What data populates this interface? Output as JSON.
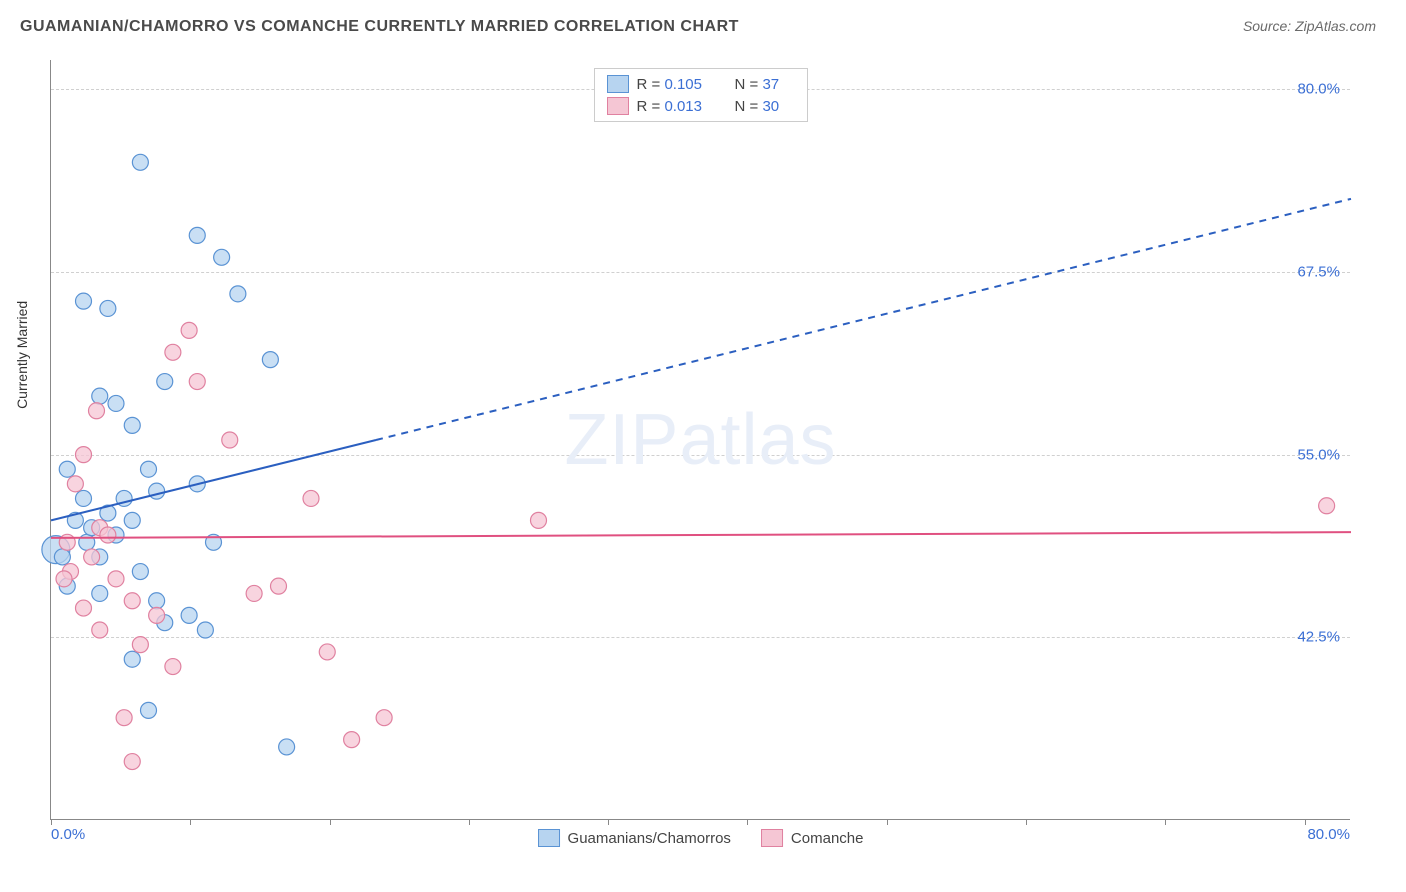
{
  "title": "GUAMANIAN/CHAMORRO VS COMANCHE CURRENTLY MARRIED CORRELATION CHART",
  "source": "Source: ZipAtlas.com",
  "ylabel": "Currently Married",
  "watermark": "ZIPatlas",
  "chart": {
    "type": "scatter",
    "xlim": [
      0,
      80
    ],
    "ylim": [
      30,
      82
    ],
    "yticks": [
      42.5,
      55.0,
      67.5,
      80.0
    ],
    "ytick_labels": [
      "42.5%",
      "55.0%",
      "67.5%",
      "80.0%"
    ],
    "xticks_minor": [
      0,
      8.57,
      17.14,
      25.71,
      34.29,
      42.86,
      51.43,
      60,
      68.57,
      77.14
    ],
    "xtick_left": "0.0%",
    "xtick_right": "80.0%",
    "grid_color": "#d0d0d0",
    "axis_color": "#888888",
    "background_color": "#ffffff",
    "series": [
      {
        "name": "Guamanians/Chamorros",
        "color_fill": "#b7d4f0",
        "color_stroke": "#5a93d4",
        "marker_radius": 8,
        "marker_opacity": 0.75,
        "trend": {
          "start": [
            0,
            50.5
          ],
          "end": [
            80,
            72.5
          ],
          "solid_until_x": 20,
          "color": "#2b5fc0",
          "width": 2
        },
        "R": "0.105",
        "N": "37",
        "points": [
          [
            1.0,
            54.0
          ],
          [
            1.5,
            50.5
          ],
          [
            2.0,
            52.0
          ],
          [
            2.2,
            49.0
          ],
          [
            0.3,
            48.5,
            14
          ],
          [
            1.0,
            46.0
          ],
          [
            2.5,
            50.0
          ],
          [
            3.0,
            48.0
          ],
          [
            3.5,
            51.0
          ],
          [
            4.0,
            49.5
          ],
          [
            4.5,
            52.0
          ],
          [
            5.0,
            50.5
          ],
          [
            5.5,
            47.0
          ],
          [
            6.0,
            54.0
          ],
          [
            6.5,
            52.5
          ],
          [
            3.0,
            59.0
          ],
          [
            4.0,
            58.5
          ],
          [
            5.0,
            57.0
          ],
          [
            7.0,
            60.0
          ],
          [
            3.5,
            65.0
          ],
          [
            2.0,
            65.5
          ],
          [
            5.5,
            75.0
          ],
          [
            9.0,
            70.0
          ],
          [
            10.5,
            68.5
          ],
          [
            11.5,
            66.0
          ],
          [
            13.5,
            61.5
          ],
          [
            9.0,
            53.0
          ],
          [
            10.0,
            49.0
          ],
          [
            6.5,
            45.0
          ],
          [
            7.0,
            43.5
          ],
          [
            5.0,
            41.0
          ],
          [
            6.0,
            37.5
          ],
          [
            8.5,
            44.0
          ],
          [
            9.5,
            43.0
          ],
          [
            14.5,
            35.0
          ],
          [
            3.0,
            45.5
          ],
          [
            0.7,
            48.0
          ]
        ]
      },
      {
        "name": "Comanche",
        "color_fill": "#f5c6d4",
        "color_stroke": "#e081a0",
        "marker_radius": 8,
        "marker_opacity": 0.75,
        "trend": {
          "start": [
            0,
            49.3
          ],
          "end": [
            80,
            49.7
          ],
          "solid_until_x": 80,
          "color": "#e05080",
          "width": 2
        },
        "R": "0.013",
        "N": "30",
        "points": [
          [
            1.5,
            53.0
          ],
          [
            2.0,
            55.0
          ],
          [
            3.0,
            50.0
          ],
          [
            1.0,
            49.0
          ],
          [
            2.5,
            48.0
          ],
          [
            3.5,
            49.5
          ],
          [
            4.0,
            46.5
          ],
          [
            5.0,
            45.0
          ],
          [
            2.0,
            44.5
          ],
          [
            3.0,
            43.0
          ],
          [
            5.5,
            42.0
          ],
          [
            6.5,
            44.0
          ],
          [
            7.5,
            40.5
          ],
          [
            4.5,
            37.0
          ],
          [
            5.0,
            34.0
          ],
          [
            9.0,
            60.0
          ],
          [
            8.5,
            63.5
          ],
          [
            7.5,
            62.0
          ],
          [
            11.0,
            56.0
          ],
          [
            12.5,
            45.5
          ],
          [
            16.0,
            52.0
          ],
          [
            17.0,
            41.5
          ],
          [
            14.0,
            46.0
          ],
          [
            18.5,
            35.5
          ],
          [
            20.5,
            37.0
          ],
          [
            30.0,
            50.5
          ],
          [
            78.5,
            51.5
          ],
          [
            1.2,
            47.0
          ],
          [
            2.8,
            58.0
          ],
          [
            0.8,
            46.5
          ]
        ]
      }
    ]
  },
  "legend_top": [
    {
      "swatch_fill": "#b7d4f0",
      "swatch_stroke": "#5a93d4",
      "R_label": "R =",
      "R_val": "0.105",
      "N_label": "N =",
      "N_val": "37"
    },
    {
      "swatch_fill": "#f5c6d4",
      "swatch_stroke": "#e081a0",
      "R_label": "R =",
      "R_val": "0.013",
      "N_label": "N =",
      "N_val": "30"
    }
  ],
  "legend_bottom": [
    {
      "swatch_fill": "#b7d4f0",
      "swatch_stroke": "#5a93d4",
      "label": "Guamanians/Chamorros"
    },
    {
      "swatch_fill": "#f5c6d4",
      "swatch_stroke": "#e081a0",
      "label": "Comanche"
    }
  ]
}
